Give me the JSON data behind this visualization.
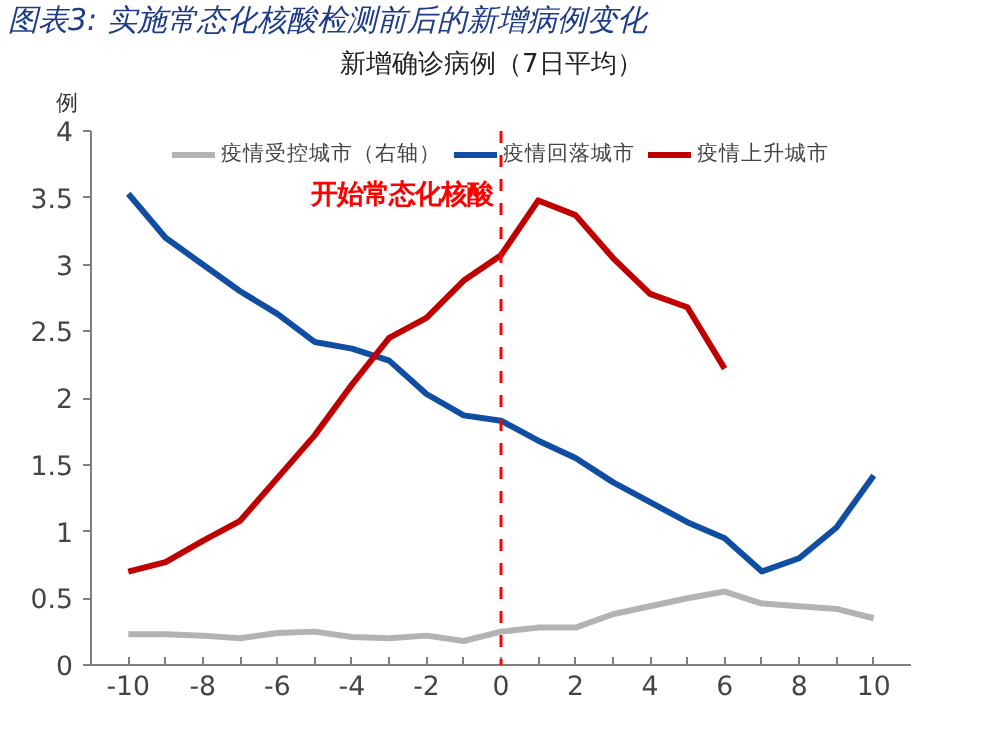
{
  "chart_data": {
    "type": "line",
    "title": "图表3: 实施常态化核酸检测前后的新增病例变化",
    "subtitle": "新增确诊病例（7日平均）",
    "ylabel": "例",
    "x": [
      -10,
      -9,
      -8,
      -7,
      -6,
      -5,
      -4,
      -3,
      -2,
      -1,
      0,
      1,
      2,
      3,
      4,
      5,
      6,
      7,
      8,
      9,
      10
    ],
    "series": [
      {
        "name": "疫情受控城市（右轴）",
        "color": "#b3b3b3",
        "values": [
          0.23,
          0.23,
          0.22,
          0.2,
          0.24,
          0.25,
          0.21,
          0.2,
          0.22,
          0.18,
          0.25,
          0.28,
          0.28,
          0.38,
          0.44,
          0.5,
          0.55,
          0.46,
          0.44,
          0.42,
          0.35
        ]
      },
      {
        "name": "疫情回落城市",
        "color": "#0f4ea2",
        "values": [
          3.53,
          3.2,
          3.0,
          2.8,
          2.63,
          2.42,
          2.37,
          2.28,
          2.03,
          1.87,
          1.83,
          1.68,
          1.55,
          1.37,
          1.22,
          1.07,
          0.95,
          0.7,
          0.8,
          1.03,
          1.42
        ]
      },
      {
        "name": "疫情上升城市",
        "color": "#c00000",
        "values": [
          0.7,
          0.77,
          0.93,
          1.08,
          1.4,
          1.72,
          2.1,
          2.45,
          2.6,
          2.88,
          3.07,
          3.48,
          3.37,
          3.05,
          2.78,
          2.68,
          2.22,
          null,
          null,
          null,
          null
        ]
      }
    ],
    "xlim": [
      -11,
      11
    ],
    "xticks": [
      -10,
      {
        "value": -9,
        "label": null
      },
      -8,
      {
        "value": -7,
        "label": null
      },
      -6,
      {
        "value": -5,
        "label": null
      },
      -4,
      {
        "value": -3,
        "label": null
      },
      -2,
      {
        "value": -1,
        "label": null
      },
      0,
      {
        "value": 1,
        "label": null
      },
      2,
      {
        "value": 3,
        "label": null
      },
      4,
      {
        "value": 5,
        "label": null
      },
      6,
      {
        "value": 7,
        "label": null
      },
      8,
      {
        "value": 9,
        "label": null
      },
      10
    ],
    "ylim": [
      0,
      4
    ],
    "yticks": [
      0,
      0.5,
      1,
      1.5,
      2,
      2.5,
      3,
      3.5,
      4
    ],
    "ref_lines": [
      {
        "axis": "x",
        "value": 0,
        "label": "开始常态化核酸",
        "color": "#ff0000",
        "line_style": "dashed"
      }
    ],
    "legend": "top",
    "grid": false,
    "marker": "none",
    "line_style": "solid"
  }
}
